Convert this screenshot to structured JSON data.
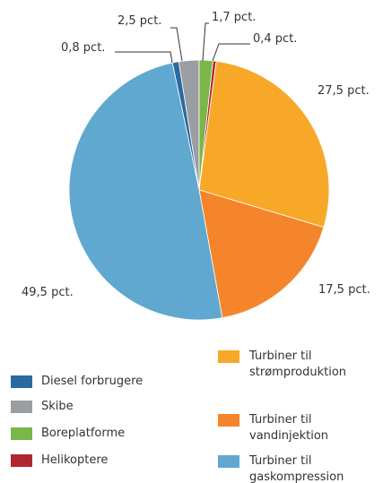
{
  "chart_data": {
    "type": "pie",
    "categories": [
      "Diesel forbrugere",
      "Skibe",
      "Boreplatforme",
      "Helikoptere",
      "Turbiner til strømproduktion",
      "Turbiner til vandinjektion",
      "Turbiner til gaskompression"
    ],
    "values": [
      0.8,
      2.5,
      1.7,
      0.4,
      27.5,
      17.5,
      49.5
    ],
    "value_labels": [
      "0,8 pct.",
      "2,5 pct.",
      "1,7 pct.",
      "0,4 pct.",
      "27,5 pct.",
      "17,5 pct.",
      "49,5 pct."
    ],
    "colors": [
      "#2b6aa0",
      "#9a9da1",
      "#7ab648",
      "#b0282e",
      "#f7a829",
      "#f5852b",
      "#60a8cf"
    ]
  }
}
